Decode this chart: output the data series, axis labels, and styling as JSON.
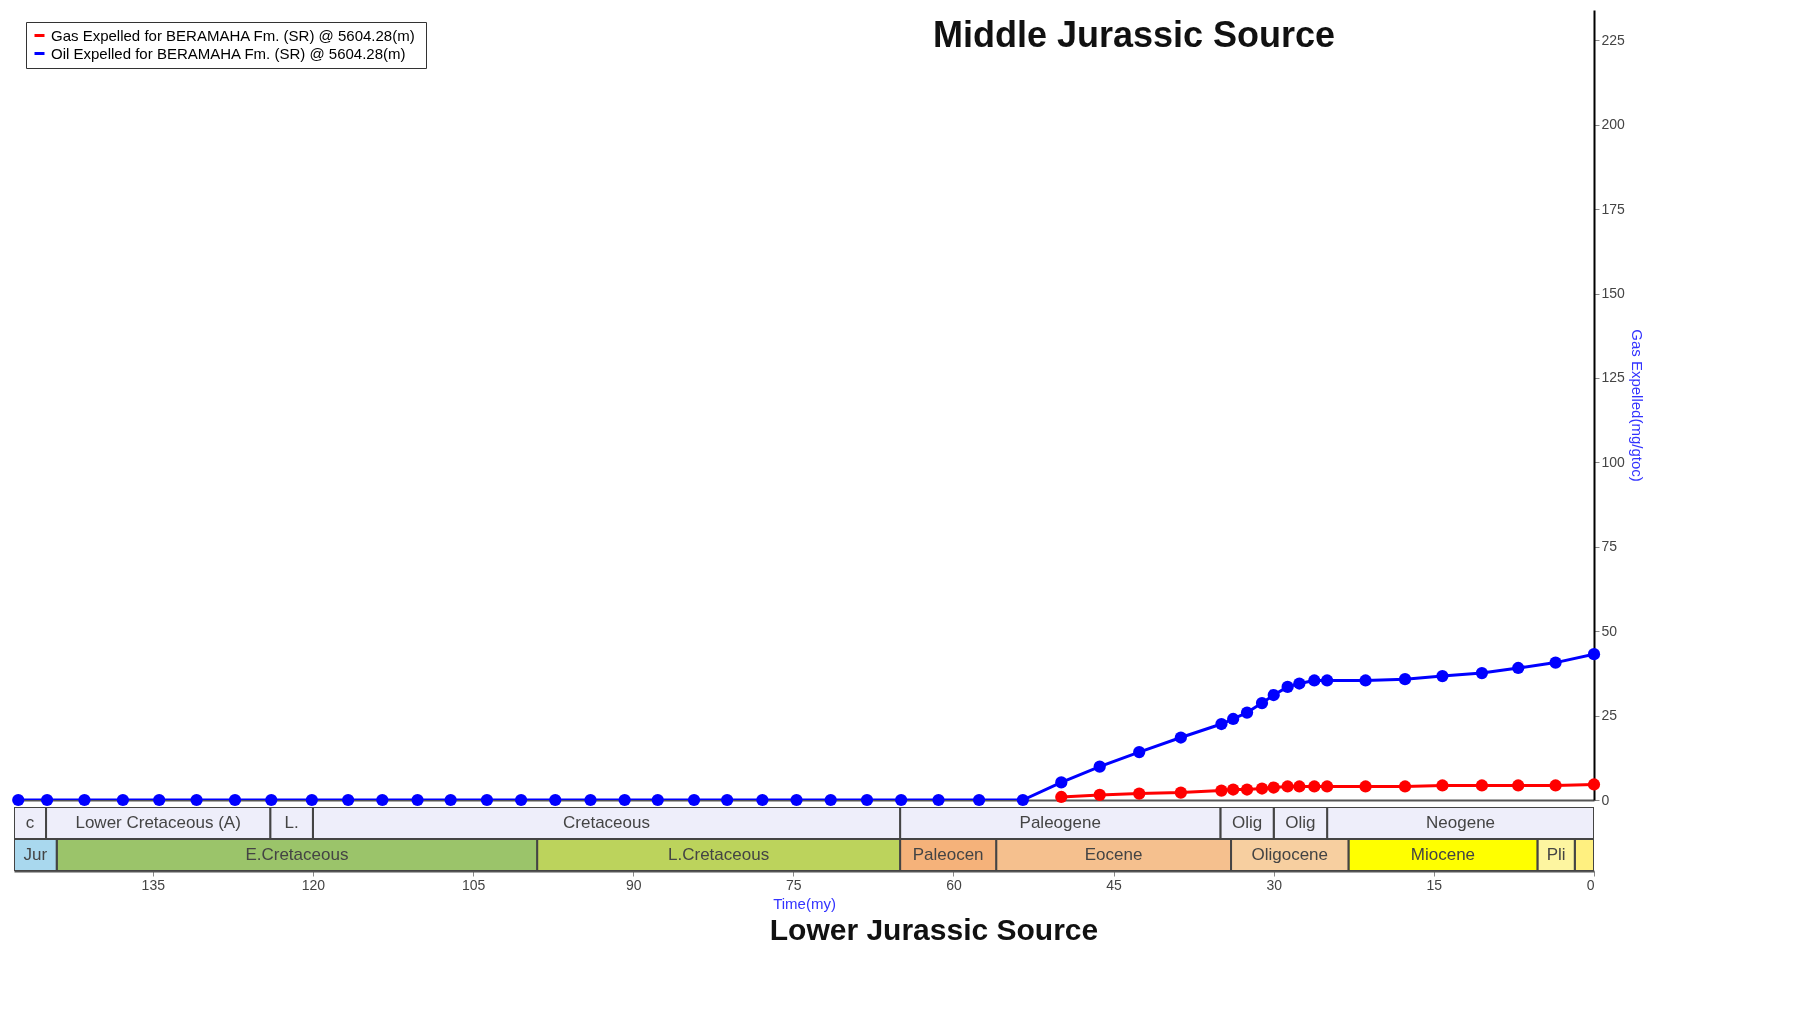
{
  "chart_data": [
    {
      "type": "line",
      "title": "Middle Jurassic Source",
      "ylabel": "Gas Expelled(mg/gtoc)",
      "xlim": [
        148,
        0
      ],
      "ylim": [
        0,
        234
      ],
      "yticks": [
        0,
        25,
        50,
        75,
        100,
        125,
        150,
        175,
        200,
        225
      ],
      "tick_labels": "y",
      "legend": "top left",
      "marker": "circle",
      "annotations": [
        "Lower Jurassic Source"
      ],
      "series": [
        {
          "name": "Gas Expelled for  BERAMAHA Fm. (SR) @ 5604.28(m)",
          "color": "#ff0000",
          "x": [
            49.9,
            46.3,
            42.6,
            38.7,
            34.9,
            33.8,
            32.5,
            31.1,
            30.0,
            28.7,
            27.6,
            26.2,
            25.0,
            21.4,
            17.7,
            14.2,
            10.5,
            7.1,
            3.6,
            0
          ],
          "values": [
            0.9,
            1.5,
            1.9,
            2.2,
            2.8,
            3.1,
            3.1,
            3.4,
            3.7,
            4.0,
            4.0,
            4.0,
            4.0,
            4.0,
            4.0,
            4.3,
            4.3,
            4.3,
            4.3,
            4.6
          ]
        },
        {
          "name": "Oil Expelled for  BERAMAHA Fm. (SR) @ 5604.28(m)",
          "color": "#0000ff",
          "x": [
            147.6,
            144.9,
            141.4,
            137.8,
            134.4,
            130.9,
            127.3,
            123.9,
            120.1,
            116.7,
            113.5,
            110.2,
            107.1,
            103.7,
            100.5,
            97.3,
            94.0,
            90.8,
            87.7,
            84.3,
            81.2,
            77.9,
            74.7,
            71.5,
            68.1,
            64.9,
            61.4,
            57.6,
            53.5,
            49.9,
            46.3,
            42.6,
            38.7,
            34.9,
            33.8,
            32.5,
            31.1,
            30.0,
            28.7,
            27.6,
            26.2,
            25.0,
            21.4,
            17.7,
            14.2,
            10.5,
            7.1,
            3.6,
            0
          ],
          "values": [
            0,
            0,
            0,
            0,
            0,
            0,
            0,
            0,
            0,
            0,
            0,
            0,
            0,
            0,
            0,
            0,
            0,
            0,
            0,
            0,
            0,
            0,
            0,
            0,
            0,
            0,
            0,
            0,
            0,
            5.2,
            9.9,
            14.2,
            18.5,
            22.5,
            24.0,
            25.9,
            28.7,
            31.1,
            33.5,
            34.5,
            35.4,
            35.4,
            35.4,
            35.8,
            36.7,
            37.6,
            39.1,
            40.7,
            43.2
          ]
        }
      ]
    },
    {
      "type": "bar",
      "orientation": "horizontal",
      "stacked": true,
      "xlabel": "Time(my)",
      "xlim": [
        148,
        0
      ],
      "xticks": [
        135,
        120,
        105,
        90,
        75,
        60,
        45,
        30,
        15,
        0
      ],
      "tick_labels": "x",
      "categories": [
        null,
        null
      ],
      "series": [
        {
          "name": "Neogene",
          "color": "#eeeefa",
          "values": [
            25,
            null
          ]
        },
        {
          "name": "Olig",
          "color": "#eeeefa",
          "values": [
            5,
            null
          ]
        },
        {
          "name": "Olig",
          "color": "#eeeefa",
          "values": [
            5,
            null
          ]
        },
        {
          "name": "Paleogene",
          "color": "#eeeefa",
          "values": [
            30,
            null
          ]
        },
        {
          "name": "Cretaceous",
          "color": "#eeeefa",
          "values": [
            55,
            null
          ]
        },
        {
          "name": "L.",
          "color": "#eeeefa",
          "values": [
            4,
            null
          ]
        },
        {
          "name": "Lower Cretaceous (A)",
          "color": "#eeeefa",
          "values": [
            21,
            null
          ]
        },
        {
          "name": "c",
          "color": "#eeeefa",
          "values": [
            3,
            null
          ]
        },
        {
          "color": "#fff080",
          "values": [
            null,
            1.8
          ]
        },
        {
          "name": "Pli",
          "color": "#fdf5a0",
          "values": [
            null,
            3.5
          ]
        },
        {
          "name": "Miocene",
          "color": "#ffff00",
          "values": [
            null,
            17.7
          ]
        },
        {
          "name": "Oligocene",
          "color": "#f7cfa0",
          "values": [
            null,
            11
          ]
        },
        {
          "name": "Eocene",
          "color": "#f5c08e",
          "values": [
            null,
            22
          ]
        },
        {
          "name": "Paleocen",
          "color": "#f5b27a",
          "values": [
            null,
            9
          ]
        },
        {
          "name": "L.Cretaceous",
          "color": "#bcd35c",
          "values": [
            null,
            34
          ]
        },
        {
          "name": "E.Cretaceous",
          "color": "#9bc46a",
          "values": [
            null,
            45
          ]
        },
        {
          "name": "Jur",
          "color": "#a9d8ee",
          "values": [
            null,
            4
          ]
        }
      ]
    }
  ]
}
